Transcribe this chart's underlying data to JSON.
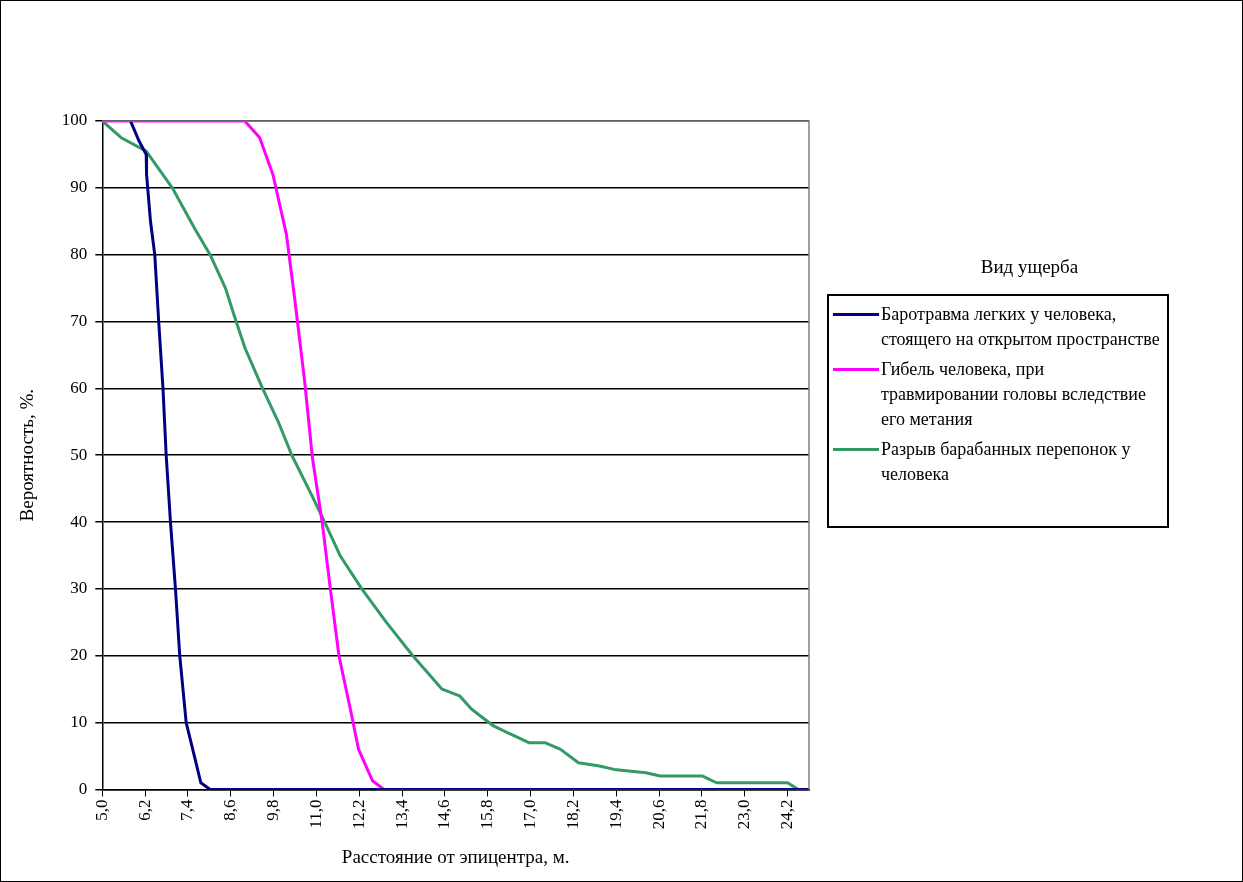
{
  "chart_data": {
    "type": "line",
    "xlabel": "Расстояние от эпицентра, м.",
    "ylabel": "Вероятность, %.",
    "legend_title": "Вид ущерба",
    "legend": "right",
    "grid": "y",
    "xlim": [
      5.0,
      24.8
    ],
    "xticks": [
      {
        "value": 5.0,
        "label": "5,0"
      },
      {
        "value": 6.2,
        "label": "6,2"
      },
      {
        "value": 7.4,
        "label": "7,4"
      },
      {
        "value": 8.6,
        "label": "8,6"
      },
      {
        "value": 9.8,
        "label": "9,8"
      },
      {
        "value": 11.0,
        "label": "11,0"
      },
      {
        "value": 12.2,
        "label": "12,2"
      },
      {
        "value": 13.4,
        "label": "13,4"
      },
      {
        "value": 14.6,
        "label": "14,6"
      },
      {
        "value": 15.8,
        "label": "15,8"
      },
      {
        "value": 17.0,
        "label": "17,0"
      },
      {
        "value": 18.2,
        "label": "18,2"
      },
      {
        "value": 19.4,
        "label": "19,4"
      },
      {
        "value": 20.6,
        "label": "20,6"
      },
      {
        "value": 21.8,
        "label": "21,8"
      },
      {
        "value": 23.0,
        "label": "23,0"
      },
      {
        "value": 24.2,
        "label": "24,2"
      }
    ],
    "ylim": [
      0,
      100
    ],
    "yticks": [
      0,
      10,
      20,
      30,
      40,
      50,
      60,
      70,
      80,
      90,
      100
    ],
    "series": [
      {
        "name": "Баротравма легких у человека, стоящего на открытом пространстве",
        "color": "#000080",
        "x": [
          5.79,
          6.03,
          6.23,
          6.24,
          6.35,
          6.47,
          6.58,
          6.7,
          6.79,
          6.91,
          7.05,
          7.17,
          7.35,
          7.58,
          7.76,
          8.02,
          24.8
        ],
        "values": [
          100,
          97,
          95,
          92,
          85,
          80,
          70,
          60,
          50,
          40,
          30,
          20,
          10,
          5,
          1,
          0,
          0
        ]
      },
      {
        "name": "Гибель человека, при травмировании головы вследствие его метания",
        "color": "#ff00ff",
        "x": [
          5.0,
          8.99,
          9.41,
          9.78,
          10.16,
          10.4,
          10.66,
          10.89,
          11.16,
          11.39,
          11.63,
          11.95,
          12.18,
          12.57,
          12.89,
          24.8
        ],
        "values": [
          100,
          100,
          97.5,
          92,
          83,
          73,
          61.5,
          49.5,
          40,
          30,
          20,
          12,
          6,
          1.3,
          0,
          0
        ]
      },
      {
        "name": "Разрыв барабанных перепонок у человека",
        "color": "#339966",
        "x": [
          5.0,
          5.53,
          6.23,
          6.96,
          7.58,
          8.02,
          8.45,
          8.75,
          9.0,
          9.49,
          9.93,
          10.31,
          10.87,
          11.23,
          11.66,
          12.27,
          12.96,
          13.7,
          14.52,
          15.01,
          15.35,
          15.96,
          16.55,
          16.95,
          17.4,
          17.84,
          18.34,
          18.93,
          19.34,
          20.23,
          20.63,
          21.82,
          22.21,
          24.2,
          24.5,
          24.8
        ],
        "values": [
          100,
          97.5,
          95.5,
          90,
          84,
          80,
          75,
          70,
          66,
          60,
          55,
          50,
          44,
          40,
          35,
          30,
          25,
          20,
          15,
          14,
          12,
          9.5,
          8,
          7,
          7,
          6,
          4,
          3.5,
          3,
          2.5,
          2,
          2,
          1,
          1,
          0,
          0
        ]
      }
    ]
  }
}
